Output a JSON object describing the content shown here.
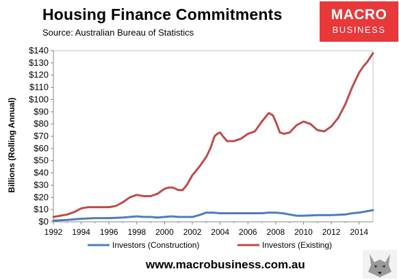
{
  "title": "Housing Finance Commitments",
  "source": "Source: Australian Bureau of Statistics",
  "logo": {
    "line1": "MACRO",
    "line2": "BUSINESS"
  },
  "footer": "www.macrobusiness.com.au",
  "colors": {
    "construction": "#4a7ebb",
    "existing": "#be4b48",
    "logo_bg": "#e8383a"
  },
  "chart_data": {
    "type": "line",
    "ylabel": "Billions (Rolling Annual)",
    "xlabel": "",
    "xlim": [
      1992,
      2015
    ],
    "ylim": [
      0,
      140
    ],
    "x_ticks": [
      "1992",
      "1994",
      "1996",
      "1998",
      "2000",
      "2002",
      "2004",
      "2006",
      "2008",
      "2010",
      "2012",
      "2014"
    ],
    "y_ticks": [
      "$0",
      "$10",
      "$20",
      "$30",
      "$40",
      "$50",
      "$60",
      "$70",
      "$80",
      "$90",
      "$100",
      "$110",
      "$120",
      "$130",
      "$140"
    ],
    "grid": false,
    "legend_position": "bottom",
    "series": [
      {
        "name": "Investors (Construction)",
        "x": [
          1992,
          1993,
          1994,
          1995,
          1996,
          1997,
          1998,
          1998.5,
          1999,
          1999.5,
          2000,
          2000.5,
          2001,
          2001.5,
          2002,
          2002.5,
          2003,
          2003.5,
          2004,
          2005,
          2006,
          2007,
          2007.5,
          2008,
          2008.5,
          2009,
          2009.5,
          2010,
          2011,
          2012,
          2013,
          2013.5,
          2014,
          2014.5,
          2015
        ],
        "values": [
          1,
          1.5,
          2.5,
          3,
          3,
          3.5,
          4.5,
          4,
          4,
          3.5,
          4,
          4.5,
          4,
          4,
          4,
          5.5,
          7.5,
          7.5,
          7,
          7,
          7,
          7,
          7.5,
          7.5,
          7,
          6,
          5,
          5,
          5.5,
          5.5,
          6,
          7,
          7.5,
          8.5,
          9.5
        ]
      },
      {
        "name": "Investors (Existing)",
        "x": [
          1992,
          1992.5,
          1993,
          1993.5,
          1994,
          1994.5,
          1995,
          1995.5,
          1996,
          1996.5,
          1997,
          1997.5,
          1998,
          1998.5,
          1999,
          1999.5,
          2000,
          2000.3,
          2000.6,
          2001,
          2001.3,
          2001.6,
          2002,
          2002.5,
          2003,
          2003.3,
          2003.6,
          2003.8,
          2004,
          2004.2,
          2004.5,
          2005,
          2005.5,
          2006,
          2006.5,
          2007,
          2007.5,
          2007.8,
          2008,
          2008.3,
          2008.6,
          2009,
          2009.5,
          2010,
          2010.5,
          2011,
          2011.5,
          2012,
          2012.5,
          2013,
          2013.5,
          2014,
          2014.3,
          2014.6,
          2015
        ],
        "values": [
          4,
          5,
          6,
          8,
          11,
          12,
          12,
          12,
          12,
          13,
          16,
          20,
          22,
          21,
          21,
          23,
          27,
          28,
          28,
          26,
          26,
          30,
          38,
          45,
          53,
          60,
          70,
          72,
          73,
          70,
          66,
          66,
          68,
          72,
          74,
          82,
          89,
          87,
          82,
          73,
          72,
          73,
          79,
          82,
          80,
          75,
          74,
          78,
          85,
          96,
          110,
          122,
          127,
          131,
          138
        ]
      }
    ]
  }
}
